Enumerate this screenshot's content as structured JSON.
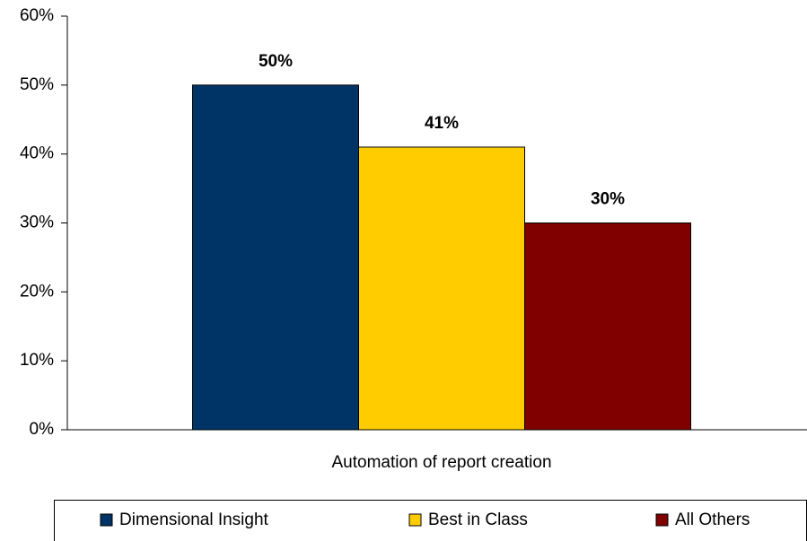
{
  "chart_data": {
    "type": "bar",
    "categories": [
      "Automation of report creation"
    ],
    "series": [
      {
        "name": "Dimensional Insight",
        "color": "#003366",
        "values": [
          50
        ],
        "value_labels": [
          "50%"
        ]
      },
      {
        "name": "Best in Class",
        "color": "#ffcc00",
        "values": [
          41
        ],
        "value_labels": [
          "41%"
        ]
      },
      {
        "name": "All Others",
        "color": "#800000",
        "values": [
          30
        ],
        "value_labels": [
          "30%"
        ]
      }
    ],
    "ylim": [
      0,
      60
    ],
    "yticks": [
      {
        "value": 0,
        "label": "0%"
      },
      {
        "value": 10,
        "label": "10%"
      },
      {
        "value": 20,
        "label": "20%"
      },
      {
        "value": 30,
        "label": "30%"
      },
      {
        "value": 40,
        "label": "40%"
      },
      {
        "value": 50,
        "label": "50%"
      },
      {
        "value": 60,
        "label": "60%"
      }
    ],
    "legend": "bottom"
  }
}
